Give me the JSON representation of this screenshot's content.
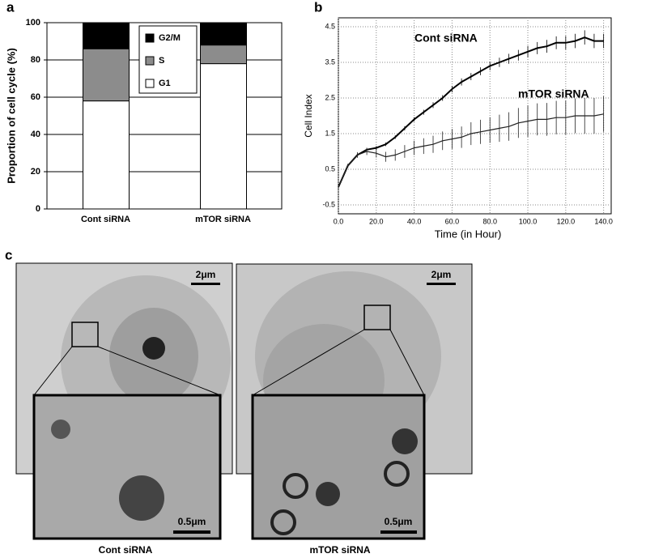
{
  "chart_data": [
    {
      "type": "bar",
      "stacked": true,
      "panel_label": "a",
      "ylabel": "Proportion of cell cycle (%)",
      "categories": [
        "Cont siRNA",
        "mTOR siRNA"
      ],
      "series": [
        {
          "name": "G1",
          "color": "#ffffff",
          "values": [
            58,
            78
          ]
        },
        {
          "name": "S",
          "color": "#8c8c8c",
          "values": [
            28,
            10
          ]
        },
        {
          "name": "G2/M",
          "color": "#000000",
          "values": [
            14,
            12
          ]
        }
      ],
      "ylim": [
        0,
        100
      ],
      "yticks": [
        0,
        20,
        40,
        60,
        80,
        100
      ],
      "grid": true,
      "legend_loc": "upper center"
    },
    {
      "type": "line",
      "panel_label": "b",
      "ylabel": "Cell Index",
      "xlabel": "Time (in Hour)",
      "x": [
        0,
        5,
        10,
        15,
        20,
        25,
        30,
        35,
        40,
        45,
        50,
        55,
        60,
        65,
        70,
        75,
        80,
        85,
        90,
        95,
        100,
        105,
        110,
        115,
        120,
        125,
        130,
        135,
        140
      ],
      "series": [
        {
          "name": "Cont siRNA",
          "color": "#000000",
          "values": [
            0.0,
            0.6,
            0.9,
            1.05,
            1.1,
            1.2,
            1.4,
            1.65,
            1.9,
            2.1,
            2.3,
            2.5,
            2.75,
            2.95,
            3.1,
            3.25,
            3.4,
            3.5,
            3.6,
            3.7,
            3.8,
            3.9,
            3.95,
            4.05,
            4.05,
            4.1,
            4.2,
            4.1,
            4.1
          ],
          "errors": [
            0.05,
            0.05,
            0.05,
            0.05,
            0.05,
            0.05,
            0.05,
            0.06,
            0.06,
            0.07,
            0.08,
            0.08,
            0.09,
            0.1,
            0.1,
            0.11,
            0.12,
            0.13,
            0.14,
            0.15,
            0.16,
            0.17,
            0.18,
            0.18,
            0.19,
            0.2,
            0.2,
            0.2,
            0.2
          ]
        },
        {
          "name": "mTOR siRNA",
          "color": "#222222",
          "values": [
            0.0,
            0.6,
            0.9,
            1.0,
            0.95,
            0.85,
            0.9,
            1.0,
            1.1,
            1.15,
            1.2,
            1.3,
            1.35,
            1.4,
            1.5,
            1.55,
            1.6,
            1.65,
            1.7,
            1.8,
            1.85,
            1.9,
            1.9,
            1.95,
            1.95,
            2.0,
            2.0,
            2.0,
            2.05
          ],
          "errors": [
            0.05,
            0.05,
            0.08,
            0.1,
            0.12,
            0.14,
            0.16,
            0.18,
            0.2,
            0.22,
            0.24,
            0.26,
            0.28,
            0.3,
            0.32,
            0.34,
            0.36,
            0.38,
            0.4,
            0.42,
            0.44,
            0.45,
            0.46,
            0.47,
            0.48,
            0.49,
            0.5,
            0.5,
            0.5
          ]
        }
      ],
      "xlim": [
        0,
        144
      ],
      "xticks": [
        {
          "value": 0,
          "label": "0.0"
        },
        {
          "value": 20,
          "label": "20.0"
        },
        {
          "value": 40,
          "label": "40.0"
        },
        {
          "value": 60,
          "label": "60.0"
        },
        {
          "value": 80,
          "label": "80.0"
        },
        {
          "value": 100,
          "label": "100.0"
        },
        {
          "value": 120,
          "label": "120.0"
        },
        {
          "value": 140,
          "label": "140.0"
        }
      ],
      "ylim": [
        -0.75,
        4.75
      ],
      "yticks": [
        -0.5,
        0.5,
        1.5,
        2.5,
        3.5,
        4.5
      ],
      "grid": true
    }
  ],
  "micrographs": {
    "panel_label": "c",
    "panels": [
      {
        "caption": "Cont siRNA",
        "scale_bar": "2μm",
        "inset_scale_bar": "0.5μm"
      },
      {
        "caption": "mTOR siRNA",
        "scale_bar": "2μm",
        "inset_scale_bar": "0.5μm"
      }
    ]
  }
}
